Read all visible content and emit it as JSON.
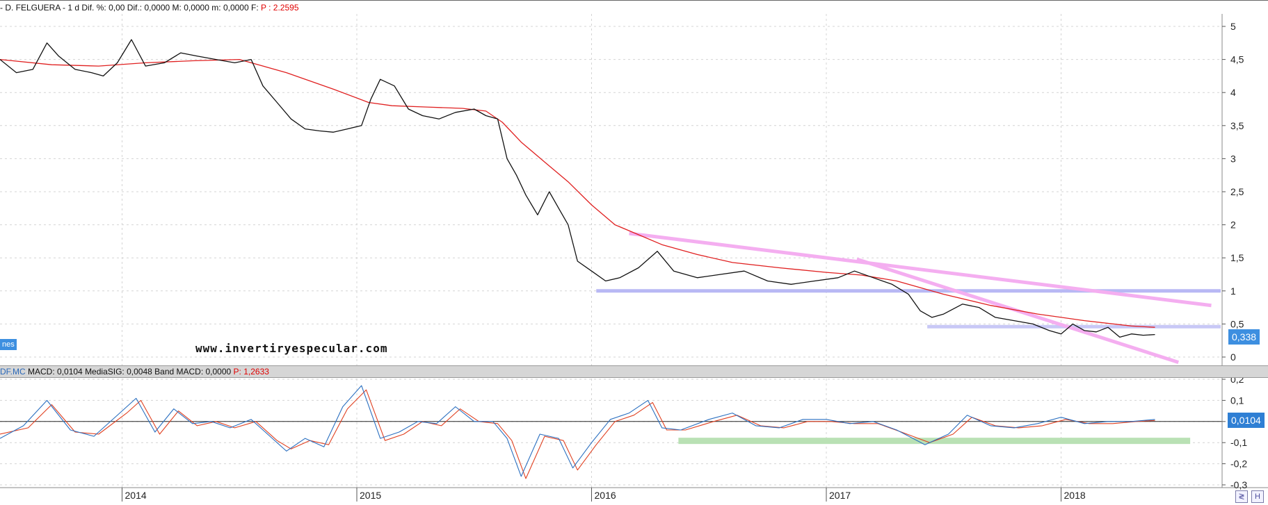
{
  "top_header": {
    "name": "- D. FELGUERA -",
    "period": "1 d",
    "dif_pct_label": "Dif. %:",
    "dif_pct": "0,00",
    "dif_label": "Dif.:",
    "dif": "0,0000",
    "max_label": "M:",
    "max": "0,0000",
    "min_label": "m:",
    "min": "0,0000",
    "f_label": "F:",
    "p_value": "P : 2.2595"
  },
  "macd_header": {
    "ticker": "DF.MC",
    "macd": "MACD: 0,0104",
    "signal": "MediaSIG: 0,0048",
    "band": "Band MACD: 0,0000",
    "p_value": "P: 1,2633"
  },
  "watermark": "www.invertiryespecular.com",
  "left_tag": "nes",
  "price_tag": "0,338",
  "macd_tag": "0,0104",
  "corner_buttons": [
    "≷",
    "H"
  ],
  "chart_data": [
    {
      "type": "line",
      "panel": "price",
      "y_ticks": [
        "5",
        "4,5",
        "4",
        "3,5",
        "3",
        "2,5",
        "2",
        "1,5",
        "1",
        "0,5",
        "0"
      ],
      "ylim": [
        0,
        5
      ],
      "x_ticks": [
        "2014",
        "2015",
        "2016",
        "2017",
        "2018"
      ],
      "xlim": [
        2013.48,
        2018.68
      ],
      "series": [
        {
          "color": "#111111",
          "x": [
            2013.48,
            2013.55,
            2013.62,
            2013.68,
            2013.73,
            2013.8,
            2013.87,
            2013.92,
            2013.98,
            2014.04,
            2014.1,
            2014.18,
            2014.25,
            2014.32,
            2014.4,
            2014.48,
            2014.55,
            2014.6,
            2014.66,
            2014.72,
            2014.78,
            2014.84,
            2014.9,
            2014.96,
            2015.02,
            2015.06,
            2015.1,
            2015.16,
            2015.22,
            2015.28,
            2015.35,
            2015.42,
            2015.5,
            2015.55,
            2015.6,
            2015.64,
            2015.68,
            2015.72,
            2015.77,
            2015.82,
            2015.86,
            2015.9,
            2015.94,
            2016.0,
            2016.06,
            2016.12,
            2016.2,
            2016.28,
            2016.35,
            2016.45,
            2016.55,
            2016.65,
            2016.75,
            2016.85,
            2016.95,
            2017.05,
            2017.12,
            2017.2,
            2017.28,
            2017.35,
            2017.4,
            2017.45,
            2017.5,
            2017.58,
            2017.65,
            2017.72,
            2017.8,
            2017.88,
            2017.95,
            2018.0,
            2018.05,
            2018.1,
            2018.15,
            2018.2,
            2018.25,
            2018.3,
            2018.35,
            2018.4
          ],
          "y": [
            4.5,
            4.3,
            4.35,
            4.75,
            4.55,
            4.35,
            4.3,
            4.25,
            4.45,
            4.8,
            4.4,
            4.45,
            4.6,
            4.55,
            4.5,
            4.45,
            4.5,
            4.1,
            3.85,
            3.6,
            3.45,
            3.42,
            3.4,
            3.45,
            3.5,
            3.9,
            4.2,
            4.1,
            3.75,
            3.65,
            3.6,
            3.7,
            3.75,
            3.65,
            3.6,
            3.0,
            2.75,
            2.45,
            2.15,
            2.5,
            2.25,
            2.0,
            1.45,
            1.3,
            1.15,
            1.2,
            1.35,
            1.6,
            1.3,
            1.2,
            1.25,
            1.3,
            1.15,
            1.1,
            1.15,
            1.2,
            1.3,
            1.2,
            1.1,
            0.95,
            0.7,
            0.6,
            0.65,
            0.8,
            0.75,
            0.6,
            0.55,
            0.5,
            0.4,
            0.35,
            0.5,
            0.4,
            0.38,
            0.45,
            0.3,
            0.35,
            0.33,
            0.34
          ]
        },
        {
          "color": "#e02020",
          "x": [
            2013.48,
            2013.7,
            2013.9,
            2014.1,
            2014.3,
            2014.5,
            2014.7,
            2014.9,
            2015.05,
            2015.15,
            2015.3,
            2015.45,
            2015.55,
            2015.62,
            2015.7,
            2015.8,
            2015.9,
            2016.0,
            2016.1,
            2016.2,
            2016.3,
            2016.45,
            2016.6,
            2016.8,
            2017.0,
            2017.15,
            2017.3,
            2017.5,
            2017.7,
            2017.9,
            2018.1,
            2018.3,
            2018.4
          ],
          "y": [
            4.5,
            4.42,
            4.4,
            4.45,
            4.48,
            4.5,
            4.3,
            4.05,
            3.85,
            3.8,
            3.78,
            3.76,
            3.72,
            3.55,
            3.25,
            2.95,
            2.65,
            2.3,
            2.0,
            1.85,
            1.7,
            1.55,
            1.43,
            1.35,
            1.28,
            1.24,
            1.15,
            0.95,
            0.78,
            0.65,
            0.55,
            0.47,
            0.45
          ]
        }
      ],
      "annotations": {
        "horizontal_lines": [
          {
            "y": 1.0,
            "x_from": 2016.02,
            "x_to": 2018.68,
            "color": "#b8b8f4"
          },
          {
            "y": 0.46,
            "x_from": 2017.43,
            "x_to": 2018.68,
            "color": "#c8c8f6"
          }
        ],
        "trend_lines": [
          {
            "from": [
              2016.16,
              1.87
            ],
            "to": [
              2018.64,
              0.78
            ],
            "color": "#f4aef0"
          },
          {
            "from": [
              2017.13,
              1.48
            ],
            "to": [
              2018.5,
              -0.08
            ],
            "color": "#f4aef0"
          }
        ]
      }
    },
    {
      "type": "line",
      "panel": "macd",
      "y_ticks": [
        "0,2",
        "0,1",
        "0",
        "-0,1",
        "-0,2",
        "-0,3"
      ],
      "ylim": [
        -0.3,
        0.2
      ],
      "series": [
        {
          "color": "#2a6fc0",
          "x": [
            2013.48,
            2013.58,
            2013.68,
            2013.78,
            2013.88,
            2014.0,
            2014.06,
            2014.14,
            2014.22,
            2014.3,
            2014.38,
            2014.46,
            2014.55,
            2014.64,
            2014.7,
            2014.78,
            2014.86,
            2014.94,
            2015.02,
            2015.1,
            2015.18,
            2015.26,
            2015.34,
            2015.42,
            2015.5,
            2015.58,
            2015.64,
            2015.7,
            2015.78,
            2015.86,
            2015.92,
            2016.0,
            2016.08,
            2016.16,
            2016.24,
            2016.3,
            2016.38,
            2016.5,
            2016.6,
            2016.7,
            2016.8,
            2016.9,
            2017.0,
            2017.1,
            2017.2,
            2017.3,
            2017.42,
            2017.52,
            2017.6,
            2017.7,
            2017.8,
            2017.9,
            2018.0,
            2018.1,
            2018.2,
            2018.3,
            2018.4
          ],
          "y": [
            -0.08,
            -0.02,
            0.1,
            -0.04,
            -0.07,
            0.05,
            0.11,
            -0.05,
            0.06,
            -0.01,
            0.0,
            -0.03,
            0.01,
            -0.08,
            -0.14,
            -0.08,
            -0.12,
            0.07,
            0.17,
            -0.08,
            -0.05,
            0.0,
            -0.01,
            0.07,
            0.0,
            0.0,
            -0.08,
            -0.26,
            -0.06,
            -0.08,
            -0.22,
            -0.1,
            0.01,
            0.04,
            0.1,
            -0.03,
            -0.04,
            0.01,
            0.04,
            -0.02,
            -0.03,
            0.01,
            0.01,
            -0.01,
            0.0,
            -0.04,
            -0.11,
            -0.06,
            0.03,
            -0.02,
            -0.03,
            -0.01,
            0.02,
            -0.01,
            0.0,
            0.0,
            0.01
          ]
        },
        {
          "color": "#e04020",
          "x": [
            2013.48,
            2013.6,
            2013.7,
            2013.8,
            2013.9,
            2014.02,
            2014.08,
            2014.16,
            2014.24,
            2014.32,
            2014.4,
            2014.48,
            2014.57,
            2014.66,
            2014.72,
            2014.8,
            2014.88,
            2014.96,
            2015.04,
            2015.12,
            2015.2,
            2015.28,
            2015.36,
            2015.44,
            2015.52,
            2015.6,
            2015.66,
            2015.72,
            2015.8,
            2015.88,
            2015.94,
            2016.02,
            2016.1,
            2016.18,
            2016.26,
            2016.32,
            2016.4,
            2016.52,
            2016.62,
            2016.72,
            2016.82,
            2016.92,
            2017.02,
            2017.12,
            2017.22,
            2017.32,
            2017.44,
            2017.54,
            2017.62,
            2017.72,
            2017.82,
            2017.92,
            2018.02,
            2018.12,
            2018.22,
            2018.32,
            2018.4
          ],
          "y": [
            -0.06,
            -0.03,
            0.08,
            -0.05,
            -0.06,
            0.04,
            0.1,
            -0.06,
            0.05,
            -0.02,
            0.0,
            -0.03,
            0.0,
            -0.09,
            -0.13,
            -0.09,
            -0.11,
            0.06,
            0.15,
            -0.09,
            -0.06,
            0.0,
            -0.02,
            0.06,
            0.0,
            -0.01,
            -0.09,
            -0.27,
            -0.07,
            -0.09,
            -0.23,
            -0.11,
            0.0,
            0.03,
            0.09,
            -0.04,
            -0.04,
            0.0,
            0.03,
            -0.02,
            -0.03,
            0.0,
            0.0,
            -0.01,
            -0.01,
            -0.05,
            -0.1,
            -0.06,
            0.02,
            -0.02,
            -0.03,
            -0.02,
            0.01,
            -0.01,
            -0.01,
            0.0,
            0.005
          ]
        }
      ],
      "annotations": {
        "zero_line": 0,
        "band": {
          "y": -0.09,
          "x_from": 2016.37,
          "x_to": 2018.55,
          "color": "#b9e1b4"
        }
      }
    }
  ]
}
